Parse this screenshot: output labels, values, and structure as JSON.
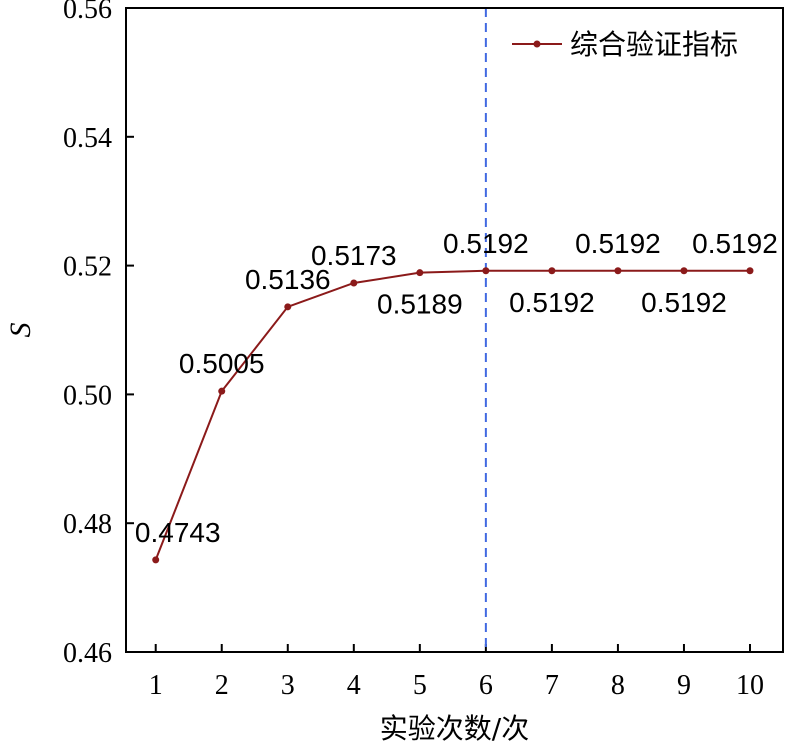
{
  "chart_data": {
    "type": "line",
    "xlabel": "实验次数/次",
    "ylabel": "S",
    "x": [
      1,
      2,
      3,
      4,
      5,
      6,
      7,
      8,
      9,
      10
    ],
    "xlim": [
      0.55,
      10.5
    ],
    "ylim": [
      0.46,
      0.56
    ],
    "yticks": [
      "0.46",
      "0.48",
      "0.50",
      "0.52",
      "0.54",
      "0.56"
    ],
    "xticks": [
      "1",
      "2",
      "3",
      "4",
      "5",
      "6",
      "7",
      "8",
      "9",
      "10"
    ],
    "series": [
      {
        "name": "综合验证指标",
        "color": "#8b1a1a",
        "values": [
          0.4743,
          0.5005,
          0.5136,
          0.5173,
          0.5189,
          0.5192,
          0.5192,
          0.5192,
          0.5192,
          0.5192
        ],
        "labels": [
          "0.4743",
          "0.5005",
          "0.5136",
          "0.5173",
          "0.5189",
          "0.5192",
          "0.5192",
          "0.5192",
          "0.5192",
          "0.5192"
        ],
        "label_positions": [
          "above",
          "above",
          "above",
          "above",
          "below",
          "above",
          "below",
          "above",
          "below",
          "above"
        ]
      }
    ],
    "reference_line": {
      "x": 6,
      "style": "dashed",
      "color": "#4169e1"
    },
    "legend_position": "top-right",
    "grid": false
  }
}
